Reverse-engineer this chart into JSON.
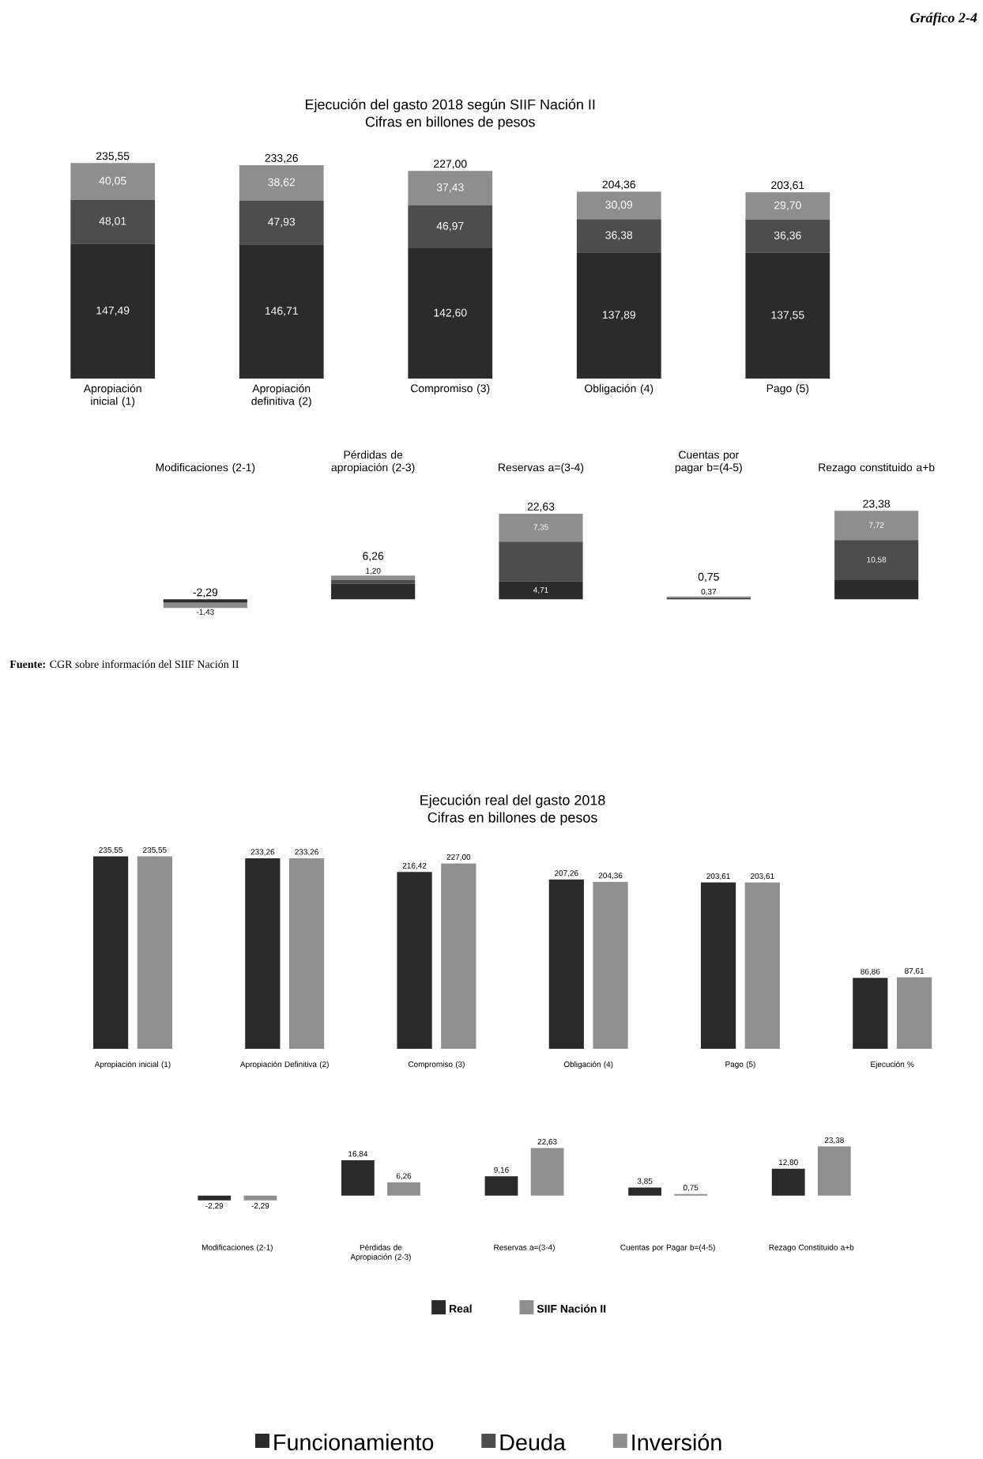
{
  "chart_data": [
    {
      "type": "bar",
      "title": "Ejecución del gasto 2018 según SIIF Nación II",
      "subtitle": "Cifras en billones de pesos",
      "annotations": [
        "Gráfico 2-4"
      ],
      "stacked": true,
      "tick_labels": "x",
      "legend": "bottom",
      "categories": [
        "Apropiación inicial (1)",
        "Apropiación definitiva (2)",
        "Compromiso (3)",
        "Obligación (4)",
        "Pago (5)"
      ],
      "series": [
        {
          "name": "Funcionamiento",
          "color": "#2b2b2b",
          "values": [
            147.49,
            146.71,
            142.6,
            137.89,
            137.55
          ],
          "value_labels": [
            "147,49",
            "146,71",
            "142,60",
            "137,89",
            "137,55"
          ]
        },
        {
          "name": "Deuda",
          "color": "#4d4d4d",
          "values": [
            48.01,
            47.93,
            46.97,
            36.38,
            36.36
          ],
          "value_labels": [
            "48,01",
            "47,93",
            "46,97",
            "36,38",
            "36,36"
          ]
        },
        {
          "name": "Inversión",
          "color": "#8e8e8e",
          "values": [
            40.05,
            38.62,
            37.43,
            30.09,
            29.7
          ],
          "value_labels": [
            "40,05",
            "38,62",
            "37,43",
            "30,09",
            "29,70"
          ]
        }
      ],
      "totals": [
        "235,55",
        "233,26",
        "227,00",
        "204,36",
        "203,61"
      ]
    },
    {
      "type": "bar",
      "annotations": [
        "**Fuente:** CGR sobre información del SIIF Nación II"
      ],
      "stacked": true,
      "tick_labels": "x",
      "categories": [
        "Modificaciones (2-1)",
        "Pérdidas de apropiación (2-3)",
        "Reservas a=(3-4)",
        "Cuentas por pagar b=(4-5)",
        "Rezago constituido a+b"
      ],
      "series": [
        {
          "color": "#2b2b2b",
          "values": [
            -0.86,
            4.11,
            4.71,
            0.34,
            5.08
          ],
          "value_labels": [
            null,
            null,
            "4,71",
            null,
            null
          ]
        },
        {
          "color": "#4d4d4d",
          "values": [
            null,
            0.95,
            10.57,
            0.04,
            10.58
          ],
          "value_labels": [
            null,
            null,
            null,
            null,
            "10,58"
          ]
        },
        {
          "color": "#8e8e8e",
          "values": [
            -1.43,
            1.2,
            7.35,
            0.37,
            7.72
          ],
          "value_labels": [
            "-1,43",
            "1,20",
            "7,35",
            "0,37",
            "7,72"
          ]
        }
      ],
      "totals": [
        "-2,29",
        "6,26",
        "22,63",
        "0,75",
        "23,38"
      ]
    },
    {
      "type": "bar",
      "title": "Ejecución real del gasto 2018",
      "subtitle": "Cifras en billones de pesos",
      "tick_labels": "x",
      "legend": "bottom",
      "categories": [
        "Apropiación inicial (1)",
        "Apropiación Definitiva (2)",
        "Compromiso (3)",
        "Obligación (4)",
        "Pago (5)",
        "Ejecución %"
      ],
      "series": [
        {
          "name": "Real",
          "color": "#2a2a2a",
          "values": [
            235.55,
            233.26,
            216.42,
            207.26,
            203.61,
            86.86
          ],
          "value_labels": [
            "235,55",
            "233,26",
            "216,42",
            "207,26",
            "203,61",
            "86,86"
          ]
        },
        {
          "name": "SIIF Nación II",
          "color": "#8f8f8f",
          "values": [
            235.55,
            233.26,
            227.0,
            204.36,
            203.61,
            87.61
          ],
          "value_labels": [
            "235,55",
            "233,26",
            "227,00",
            "204,36",
            "203,61",
            "87,61"
          ]
        }
      ]
    },
    {
      "type": "bar",
      "tick_labels": "x",
      "categories": [
        "Modificaciones (2-1)",
        "Pérdidas de Apropiación (2-3)",
        "Reservas a=(3-4)",
        "Cuentas por Pagar b=(4-5)",
        "Rezago Constituido a+b"
      ],
      "series": [
        {
          "color": "#2a2a2a",
          "values": [
            -2.29,
            16.84,
            9.16,
            3.85,
            12.8
          ],
          "value_labels": [
            "-2,29",
            "16,84",
            "9,16",
            "3,85",
            "12,80"
          ]
        },
        {
          "color": "#8f8f8f",
          "values": [
            -2.29,
            6.26,
            22.63,
            0.75,
            23.38
          ],
          "value_labels": [
            "-2,29",
            "6,26",
            "22,63",
            "0,75",
            "23,38"
          ]
        }
      ]
    }
  ]
}
